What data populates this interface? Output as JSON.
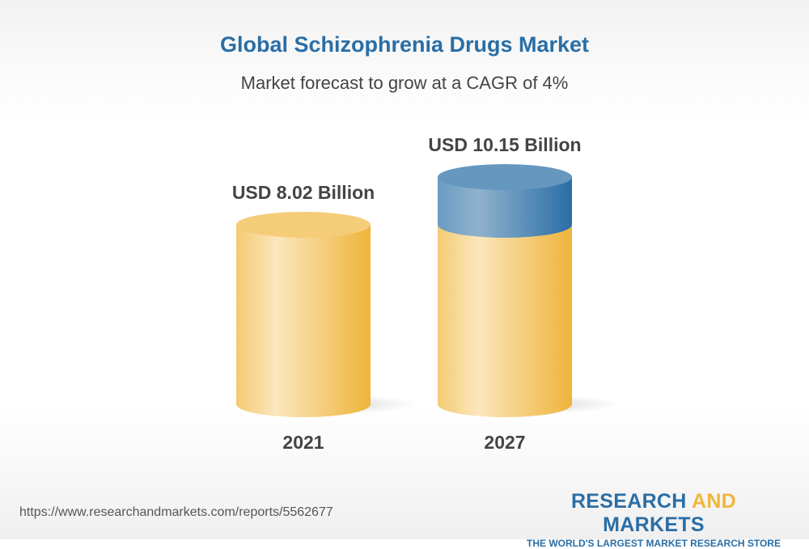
{
  "title": "Global Schizophrenia Drugs Market",
  "subtitle": "Market forecast to grow at a CAGR of 4%",
  "url": "https://www.researchandmarkets.com/reports/5562677",
  "logo": {
    "part1": "RESEARCH",
    "part2": "AND",
    "part3": "MARKETS",
    "tagline": "THE WORLD'S LARGEST MARKET RESEARCH STORE"
  },
  "colors": {
    "gold": "#f0b63c",
    "blue": "#2a6ea6"
  },
  "chart_data": {
    "type": "bar",
    "style": "3d-cylinder",
    "categories": [
      "2021",
      "2027"
    ],
    "values": [
      8.02,
      10.15
    ],
    "labels": [
      "USD 8.02 Billion",
      "USD 10.15 Billion"
    ],
    "title": "Global Schizophrenia Drugs Market",
    "subtitle": "Market forecast to grow at a CAGR of 4%",
    "grid": false
  }
}
